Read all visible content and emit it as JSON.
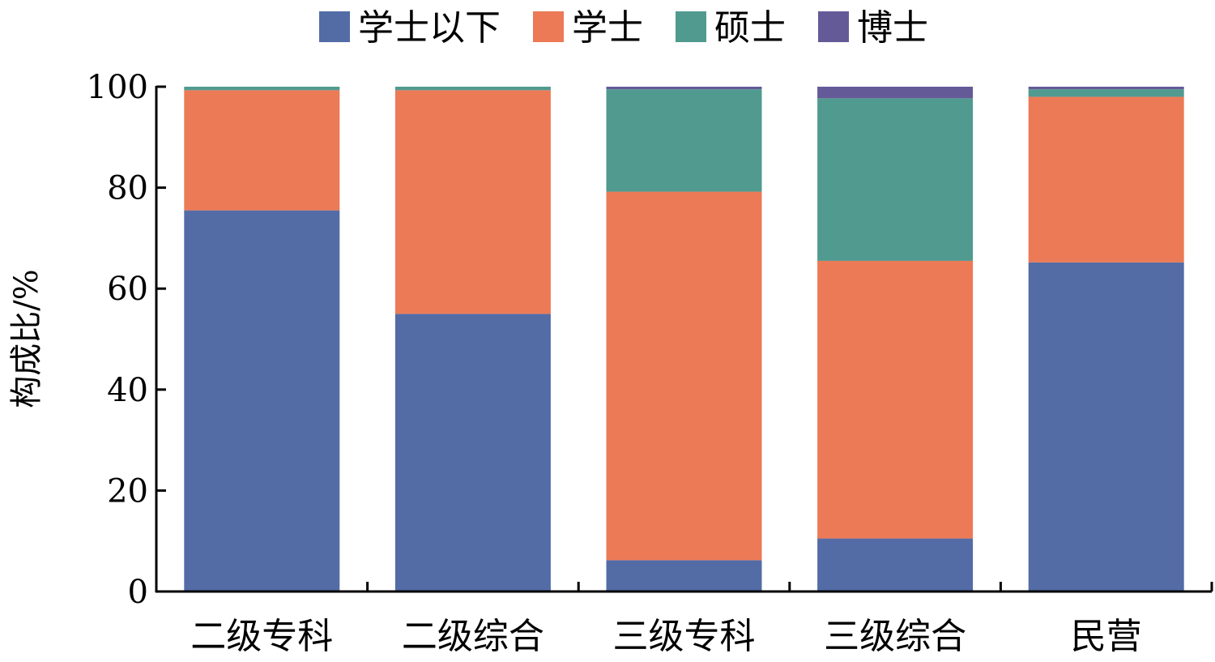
{
  "chart_data": {
    "type": "bar",
    "stacked": true,
    "categories": [
      "二级专科",
      "二级综合",
      "三级专科",
      "三级综合",
      "民营"
    ],
    "series": [
      {
        "name": "学士以下",
        "color": "#536ca6",
        "values": [
          75.5,
          55.0,
          6.2,
          10.5,
          65.2
        ]
      },
      {
        "name": "学士",
        "color": "#ec7a56",
        "values": [
          23.8,
          44.3,
          73.0,
          55.0,
          32.8
        ]
      },
      {
        "name": "硕士",
        "color": "#519a90",
        "values": [
          0.7,
          0.7,
          20.3,
          32.2,
          1.5
        ]
      },
      {
        "name": "博士",
        "color": "#655a98",
        "values": [
          0.0,
          0.0,
          0.5,
          2.3,
          0.5
        ]
      }
    ],
    "xlabel": "",
    "ylabel": "构成比/%",
    "ylim": [
      0,
      100
    ],
    "yticks": [
      "0",
      "20",
      "40",
      "60",
      "80",
      "100"
    ],
    "legend_position": "top",
    "grid": false
  }
}
